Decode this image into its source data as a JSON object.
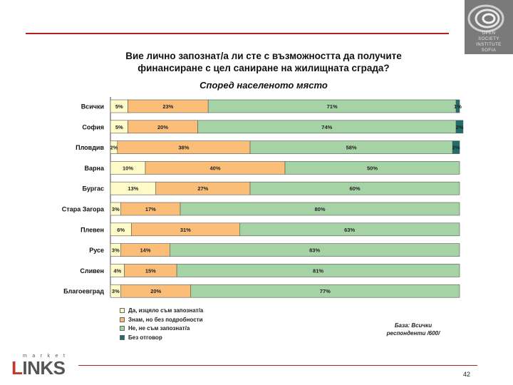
{
  "brand": {
    "top": "market",
    "main_first": "L",
    "main_rest": "INKS"
  },
  "logo": {
    "line1": "OPEN",
    "line2": "SOCIETY",
    "line3": "INSTITUTE",
    "line4": "SOFIA"
  },
  "page_number": "42",
  "base_note": {
    "line1": "База: Всички",
    "line2": "респонденти   /600/"
  },
  "colors": {
    "aware": "#FFFBC8",
    "heard": "#FBBE79",
    "not_aware": "#A6D3A6",
    "no_answer": "#1F6E6B"
  },
  "chart_data": {
    "type": "bar",
    "stacked": true,
    "orientation": "horizontal",
    "title": "Вие лично запознат/а ли сте с възможността да получите финансиране с цел саниране на жилищната сграда?",
    "title_line1": "Вие лично запознат/а ли сте с възможността да получите",
    "title_line2": "финансиране с цел саниране на жилищната сграда?",
    "subtitle": "Според населеното място",
    "xlim": [
      0,
      100
    ],
    "categories": [
      "Всички",
      "София",
      "Пловдив",
      "Варна",
      "Бургас",
      "Стара Загора",
      "Плевен",
      "Русе",
      "Сливен",
      "Благоевград"
    ],
    "series": [
      {
        "name": "Да, изцяло съм запознат/а",
        "values": [
          5,
          5,
          2,
          10,
          13,
          3,
          6,
          3,
          4,
          3
        ],
        "labels": [
          "5%",
          "5%",
          "2%",
          "10%",
          "13%",
          "3%",
          "6%",
          "3%",
          "4%",
          "3%"
        ]
      },
      {
        "name": "Знам, но без подробности",
        "values": [
          23,
          20,
          38,
          40,
          27,
          17,
          31,
          14,
          15,
          20
        ],
        "labels": [
          "23%",
          "20%",
          "38%",
          "40%",
          "27%",
          "17%",
          "31%",
          "14%",
          "15%",
          "20%"
        ]
      },
      {
        "name": "Не, не съм запознат/а",
        "values": [
          71,
          74,
          58,
          50,
          60,
          80,
          63,
          83,
          81,
          77
        ],
        "labels": [
          "71%",
          "74%",
          "58%",
          "50%",
          "60%",
          "80%",
          "63%",
          "83%",
          "81%",
          "77%"
        ]
      },
      {
        "name": "Без отговор",
        "values": [
          1,
          2,
          2,
          0,
          0,
          0,
          0,
          0,
          0,
          0
        ],
        "labels": [
          "1%",
          "2%",
          "2%",
          "",
          "",
          "",
          "",
          "",
          "",
          ""
        ]
      }
    ],
    "legend": [
      "Да, изцяло съм запознат/а",
      "Знам, но без подробности",
      "Не, не съм запознат/а",
      "Без отговор"
    ]
  }
}
